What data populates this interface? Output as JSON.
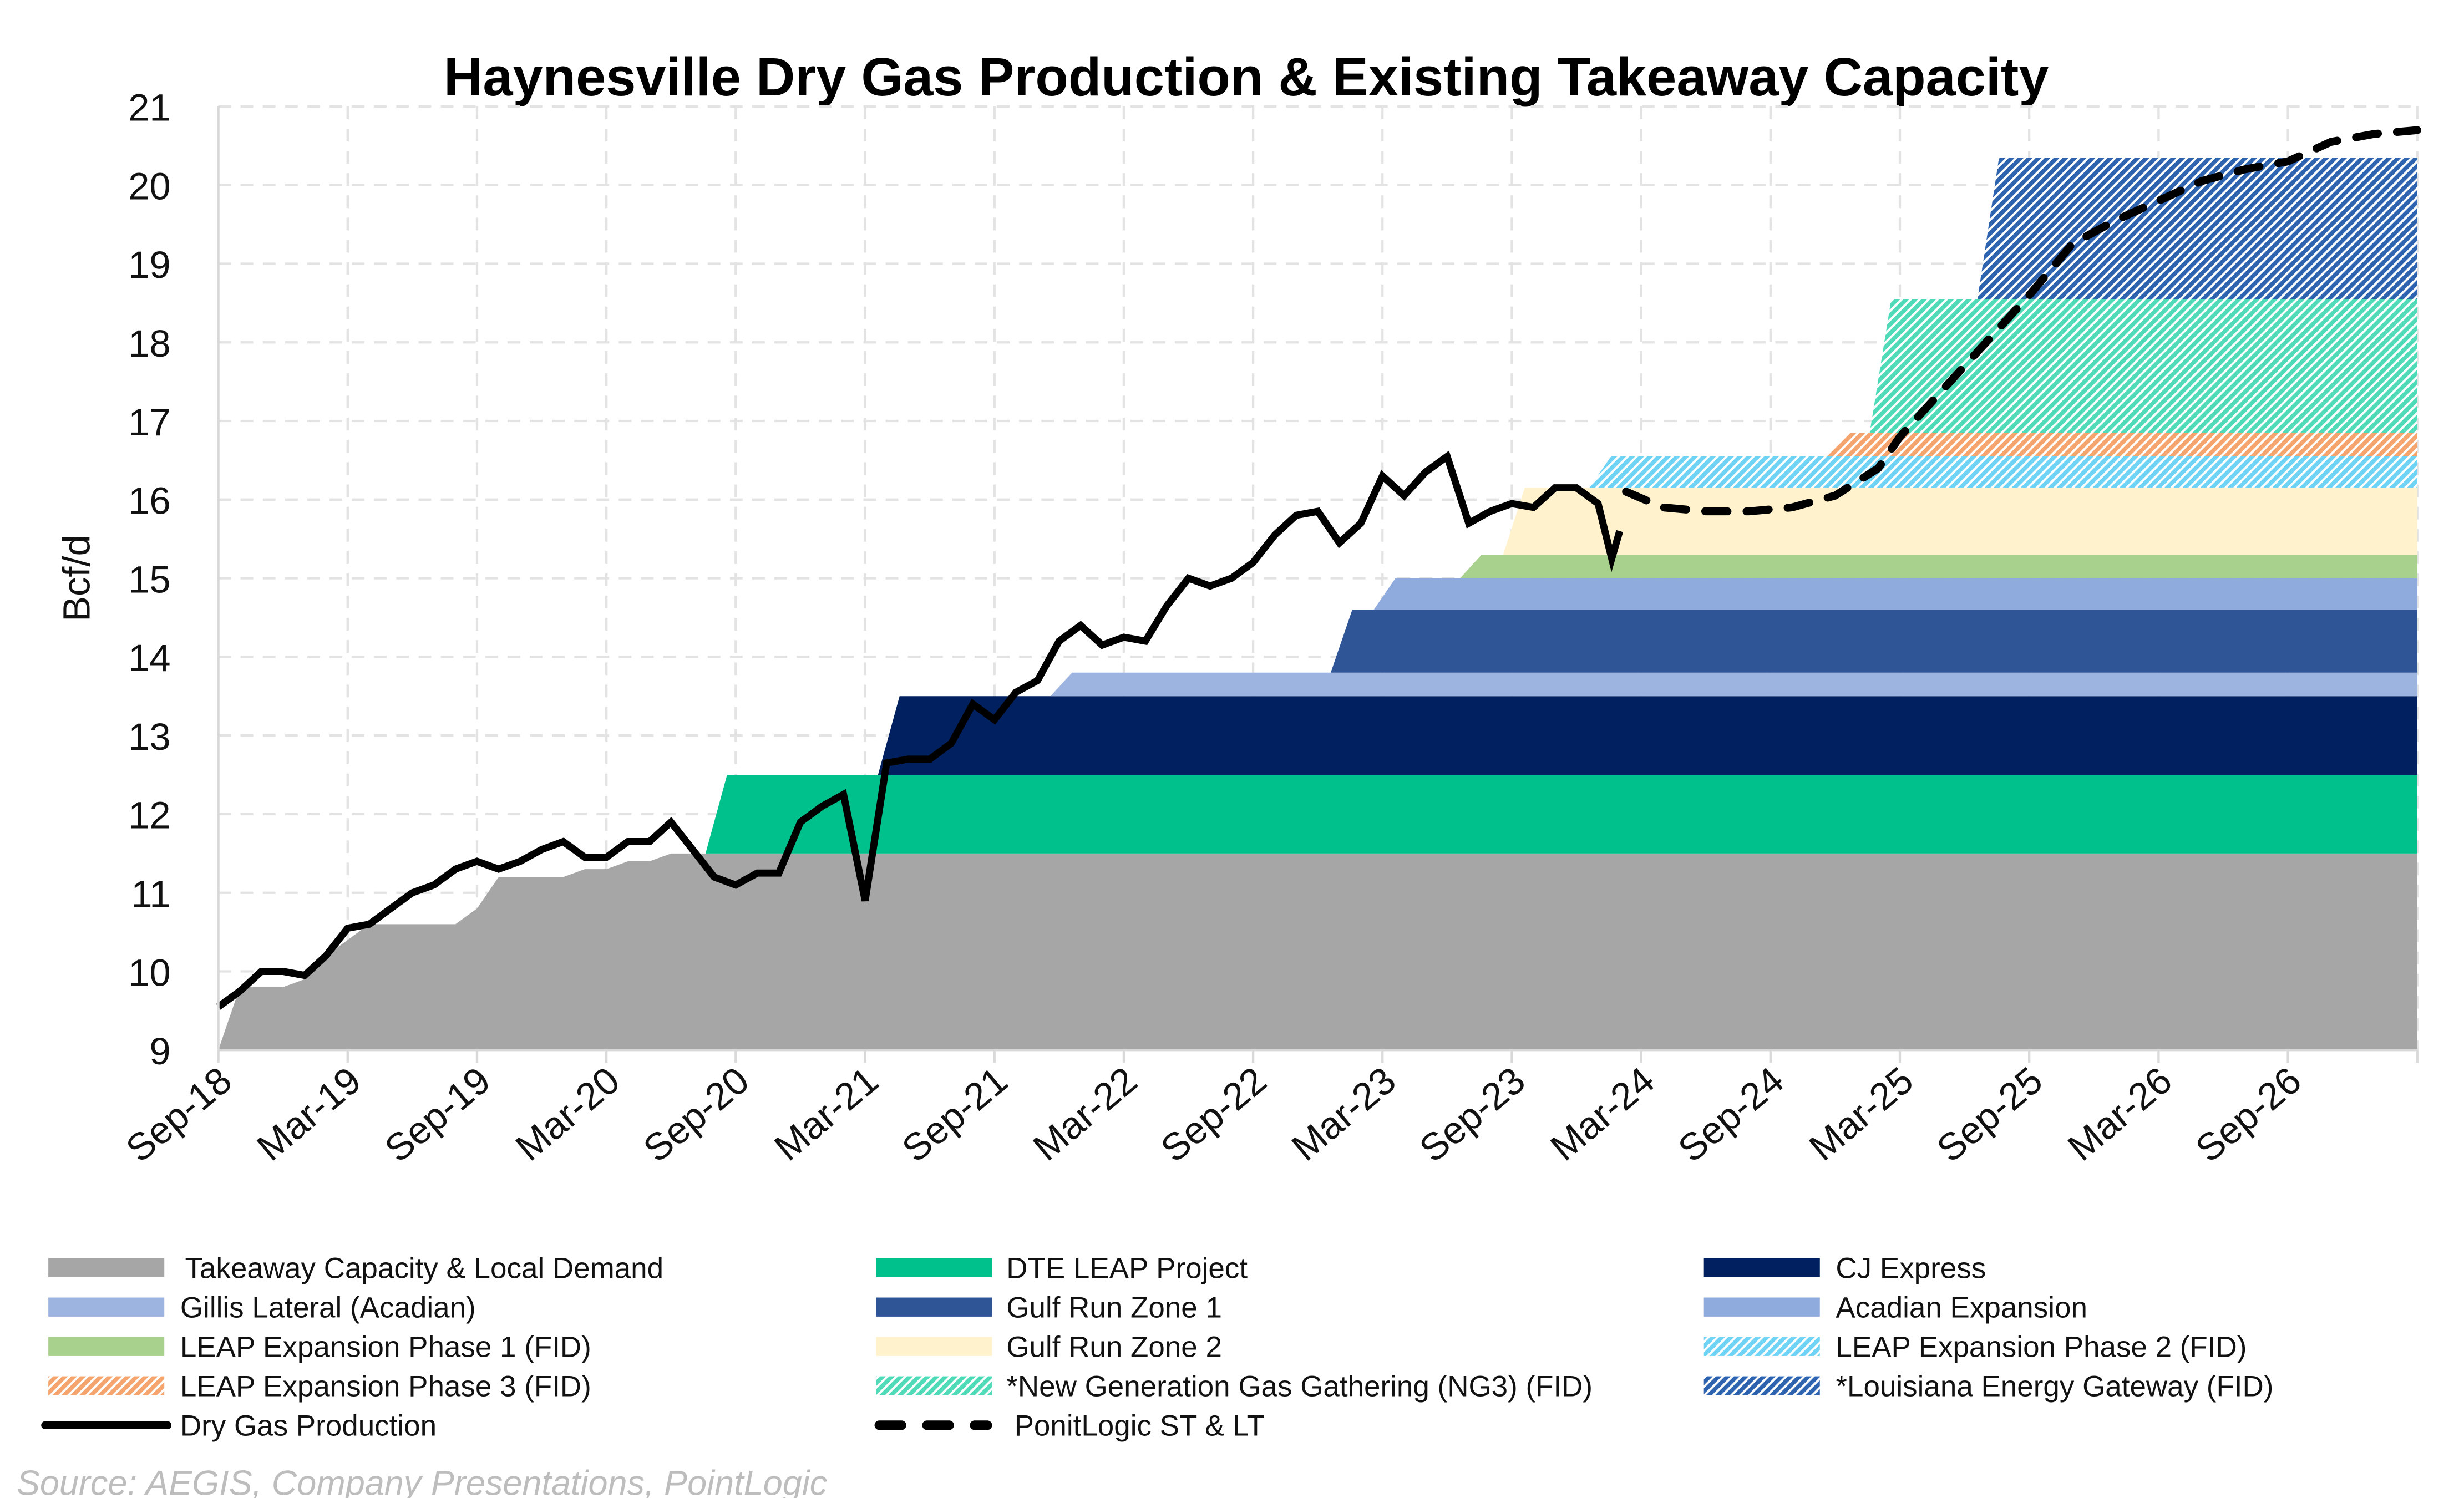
{
  "chart_data": {
    "type": "area",
    "title": "Haynesville Dry Gas Production & Existing Takeaway Capacity",
    "ylabel": "Bcf/d",
    "xlabel": "",
    "ylim": [
      9,
      21
    ],
    "xlim": [
      "2018-09",
      "2027-03"
    ],
    "yticks": [
      "9",
      "10",
      "11",
      "12",
      "13",
      "14",
      "15",
      "16",
      "17",
      "18",
      "19",
      "20",
      "21"
    ],
    "xticks": [
      "Sep-18",
      "Mar-19",
      "Sep-19",
      "Mar-20",
      "Sep-20",
      "Mar-21",
      "Sep-21",
      "Mar-22",
      "Sep-22",
      "Mar-23",
      "Sep-23",
      "Mar-24",
      "Sep-24",
      "Mar-25",
      "Sep-25",
      "Mar-26",
      "Sep-26"
    ],
    "grid": true,
    "legend_placement": "bottom",
    "source": "Source: AEGIS, Company Presentations, PointLogic",
    "base_capacity": {
      "name": "Takeaway Capacity & Local Demand",
      "color": "#a6a6a6",
      "points": [
        [
          "2018-09",
          9.0
        ],
        [
          "2018-10",
          9.8
        ],
        [
          "2018-11",
          9.8
        ],
        [
          "2018-12",
          9.8
        ],
        [
          "2019-01",
          9.9
        ],
        [
          "2019-02",
          10.2
        ],
        [
          "2019-03",
          10.4
        ],
        [
          "2019-04",
          10.6
        ],
        [
          "2019-05",
          10.6
        ],
        [
          "2019-06",
          10.6
        ],
        [
          "2019-07",
          10.6
        ],
        [
          "2019-08",
          10.6
        ],
        [
          "2019-09",
          10.8
        ],
        [
          "2019-10",
          11.2
        ],
        [
          "2019-11",
          11.2
        ],
        [
          "2019-12",
          11.2
        ],
        [
          "2020-01",
          11.2
        ],
        [
          "2020-02",
          11.3
        ],
        [
          "2020-03",
          11.3
        ],
        [
          "2020-04",
          11.4
        ],
        [
          "2020-05",
          11.4
        ],
        [
          "2020-06",
          11.5
        ],
        [
          "2027-03",
          11.5
        ]
      ]
    },
    "capacity_layers": [
      {
        "name": "DTE LEAP Project",
        "start": "2020-08",
        "top": 12.5,
        "color": "#00c08b",
        "hatched": false
      },
      {
        "name": "CJ Express",
        "start": "2021-04",
        "top": 13.5,
        "color": "#002060",
        "hatched": false
      },
      {
        "name": "Gillis Lateral (Acadian)",
        "start": "2021-12",
        "top": 13.8,
        "color": "#9db3e0",
        "hatched": false
      },
      {
        "name": "Gulf Run Zone 1",
        "start": "2023-01",
        "top": 14.6,
        "color": "#2f5597",
        "hatched": false
      },
      {
        "name": "Acadian Expansion",
        "start": "2023-03",
        "top": 15.0,
        "color": "#8faadc",
        "hatched": false
      },
      {
        "name": "LEAP Expansion Phase 1 (FID)",
        "start": "2023-07",
        "top": 15.3,
        "color": "#a9d18e",
        "hatched": false
      },
      {
        "name": "Gulf Run Zone 2",
        "start": "2023-09",
        "top": 16.15,
        "color": "#fff2cc",
        "hatched": false
      },
      {
        "name": "LEAP Expansion Phase 2 (FID)",
        "start": "2024-01",
        "top": 16.55,
        "color": "#6fd3f5",
        "hatched": true
      },
      {
        "name": "LEAP Expansion Phase 3 (FID)",
        "start": "2024-12",
        "top": 16.85,
        "color": "#f4a46c",
        "hatched": true
      },
      {
        "name": "*New Generation Gas Gathering (NG3) (FID)",
        "start": "2025-02",
        "top": 18.55,
        "color": "#4fdbb8",
        "hatched": true
      },
      {
        "name": "*Louisiana Energy Gateway (FID)",
        "start": "2025-07",
        "top": 20.35,
        "color": "#2e63b0",
        "hatched": true
      }
    ],
    "production": {
      "name": "Dry Gas Production",
      "color": "#000000",
      "points": [
        [
          "2018-09",
          9.55
        ],
        [
          "2018-10",
          9.75
        ],
        [
          "2018-11",
          10.0
        ],
        [
          "2018-12",
          10.0
        ],
        [
          "2019-01",
          9.95
        ],
        [
          "2019-02",
          10.2
        ],
        [
          "2019-03",
          10.55
        ],
        [
          "2019-04",
          10.6
        ],
        [
          "2019-05",
          10.8
        ],
        [
          "2019-06",
          11.0
        ],
        [
          "2019-07",
          11.1
        ],
        [
          "2019-08",
          11.3
        ],
        [
          "2019-09",
          11.4
        ],
        [
          "2019-10",
          11.3
        ],
        [
          "2019-11",
          11.4
        ],
        [
          "2019-12",
          11.55
        ],
        [
          "2020-01",
          11.65
        ],
        [
          "2020-02",
          11.45
        ],
        [
          "2020-03",
          11.45
        ],
        [
          "2020-04",
          11.65
        ],
        [
          "2020-05",
          11.65
        ],
        [
          "2020-06",
          11.9
        ],
        [
          "2020-07",
          11.55
        ],
        [
          "2020-08",
          11.2
        ],
        [
          "2020-09",
          11.1
        ],
        [
          "2020-10",
          11.25
        ],
        [
          "2020-11",
          11.25
        ],
        [
          "2020-12",
          11.9
        ],
        [
          "2021-01",
          12.1
        ],
        [
          "2021-02",
          12.25
        ],
        [
          "2021-03",
          10.9
        ],
        [
          "2021-04",
          12.65
        ],
        [
          "2021-05",
          12.7
        ],
        [
          "2021-06",
          12.7
        ],
        [
          "2021-07",
          12.9
        ],
        [
          "2021-08",
          13.4
        ],
        [
          "2021-09",
          13.2
        ],
        [
          "2021-10",
          13.55
        ],
        [
          "2021-11",
          13.7
        ],
        [
          "2021-12",
          14.2
        ],
        [
          "2022-01",
          14.4
        ],
        [
          "2022-02",
          14.15
        ],
        [
          "2022-03",
          14.25
        ],
        [
          "2022-04",
          14.2
        ],
        [
          "2022-05",
          14.65
        ],
        [
          "2022-06",
          15.0
        ],
        [
          "2022-07",
          14.9
        ],
        [
          "2022-08",
          15.0
        ],
        [
          "2022-09",
          15.2
        ],
        [
          "2022-10",
          15.55
        ],
        [
          "2022-11",
          15.8
        ],
        [
          "2022-12",
          15.85
        ],
        [
          "2023-01",
          15.45
        ],
        [
          "2023-02",
          15.7
        ],
        [
          "2023-03",
          16.3
        ],
        [
          "2023-04",
          16.05
        ],
        [
          "2023-05",
          16.35
        ],
        [
          "2023-06",
          16.55
        ],
        [
          "2023-07",
          15.7
        ],
        [
          "2023-08",
          15.85
        ],
        [
          "2023-09",
          15.95
        ],
        [
          "2023-10",
          15.9
        ],
        [
          "2023-11",
          16.15
        ],
        [
          "2023-12",
          16.15
        ],
        [
          "2024-01",
          15.95
        ],
        [
          "2024-01-20",
          15.25
        ],
        [
          "2024-02-01",
          15.6
        ]
      ]
    },
    "forecast": {
      "name": "PonitLogic ST & LT",
      "color": "#000000",
      "points": [
        [
          "2024-02-10",
          16.1
        ],
        [
          "2024-04",
          15.9
        ],
        [
          "2024-06",
          15.85
        ],
        [
          "2024-08",
          15.85
        ],
        [
          "2024-10",
          15.9
        ],
        [
          "2024-12",
          16.05
        ],
        [
          "2025-02",
          16.4
        ],
        [
          "2025-03",
          16.8
        ],
        [
          "2025-05",
          17.4
        ],
        [
          "2025-07",
          18.0
        ],
        [
          "2025-09",
          18.6
        ],
        [
          "2025-11",
          19.25
        ],
        [
          "2026-01",
          19.55
        ],
        [
          "2026-03",
          19.8
        ],
        [
          "2026-05",
          20.05
        ],
        [
          "2026-07",
          20.2
        ],
        [
          "2026-09",
          20.3
        ],
        [
          "2026-11",
          20.55
        ],
        [
          "2027-01",
          20.65
        ],
        [
          "2027-03",
          20.7
        ]
      ]
    }
  }
}
